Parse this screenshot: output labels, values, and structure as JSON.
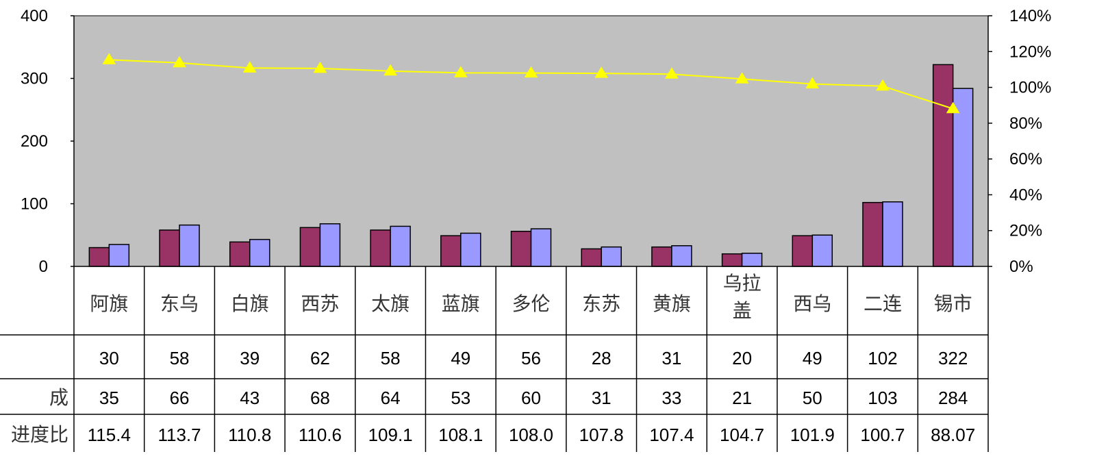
{
  "chart_data": {
    "type": "bar",
    "categories": [
      "阿旗",
      "东乌",
      "白旗",
      "西苏",
      "太旗",
      "蓝旗",
      "多伦",
      "东苏",
      "黄旗",
      "乌拉盖",
      "西乌",
      "二连",
      "锡市"
    ],
    "category_lines": [
      [
        "阿旗"
      ],
      [
        "东乌"
      ],
      [
        "白旗"
      ],
      [
        "西苏"
      ],
      [
        "太旗"
      ],
      [
        "蓝旗"
      ],
      [
        "多伦"
      ],
      [
        "东苏"
      ],
      [
        "黄旗"
      ],
      [
        "乌拉",
        "盖"
      ],
      [
        "西乌"
      ],
      [
        "二连"
      ],
      [
        "锡市"
      ]
    ],
    "series": [
      {
        "values": [
          30,
          58,
          39,
          62,
          58,
          49,
          56,
          28,
          31,
          20,
          49,
          102,
          322
        ],
        "color": "#993366",
        "axis": "left",
        "kind": "bar"
      },
      {
        "name": "成",
        "values": [
          35,
          66,
          43,
          68,
          64,
          53,
          60,
          31,
          33,
          21,
          50,
          103,
          284
        ],
        "color": "#9999ff",
        "axis": "left",
        "kind": "bar"
      },
      {
        "name": "进度比",
        "values": [
          115.4,
          113.7,
          110.8,
          110.6,
          109.1,
          108.1,
          108.0,
          107.8,
          107.4,
          104.7,
          101.9,
          100.7,
          88.07
        ],
        "color": "#ffff00",
        "axis": "right",
        "kind": "line",
        "marker": "triangle"
      }
    ],
    "table_rows": [
      {
        "label": "",
        "values": [
          "30",
          "58",
          "39",
          "62",
          "58",
          "49",
          "56",
          "28",
          "31",
          "20",
          "49",
          "102",
          "322"
        ]
      },
      {
        "label": "成",
        "values": [
          "35",
          "66",
          "43",
          "68",
          "64",
          "53",
          "60",
          "31",
          "33",
          "21",
          "50",
          "103",
          "284"
        ]
      },
      {
        "label": "进度比",
        "values": [
          "115.4",
          "113.7",
          "110.8",
          "110.6",
          "109.1",
          "108.1",
          "108.0",
          "107.8",
          "107.4",
          "104.7",
          "101.9",
          "100.7",
          "88.07"
        ]
      }
    ],
    "y_left": {
      "ticks": [
        0,
        100,
        200,
        300,
        400
      ],
      "tick_labels": [
        "0",
        "100",
        "200",
        "300",
        "400"
      ],
      "ylim": [
        0,
        400
      ]
    },
    "y_right": {
      "ticks": [
        0,
        20,
        40,
        60,
        80,
        100,
        120,
        140
      ],
      "tick_labels": [
        "0%",
        "20%",
        "40%",
        "60%",
        "80%",
        "100%",
        "120%",
        "140%"
      ],
      "ylim": [
        0,
        140
      ]
    },
    "plot_background": "#c0c0c0",
    "grid": false,
    "legend": "data-table"
  }
}
